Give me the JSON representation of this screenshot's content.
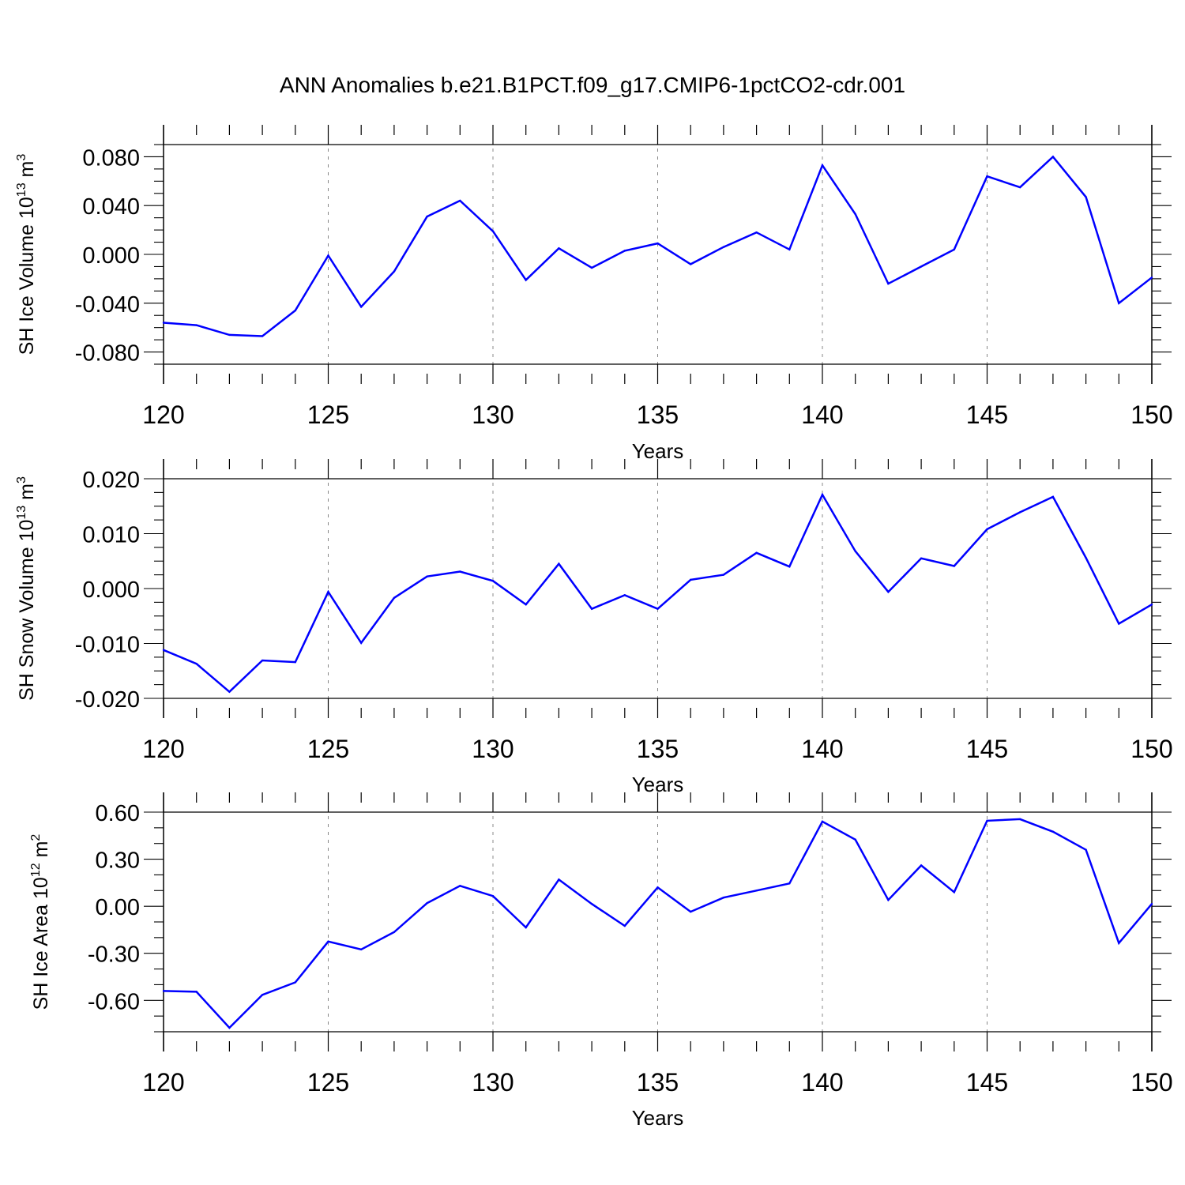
{
  "title": "ANN Anomalies b.e21.B1PCT.f09_g17.CMIP6-1pctCO2-cdr.001",
  "colors": {
    "line": "#0000ff",
    "axis": "#000000",
    "grid": "#888888"
  },
  "chart_data": [
    {
      "type": "line",
      "xlabel": "Years",
      "ylabel": "SH Ice Volume 10",
      "ylabel_exp": "13",
      "ylabel_unit": " m",
      "ylabel_unit_exp": "3",
      "xlim": [
        120,
        150
      ],
      "ylim": [
        -0.09,
        0.09
      ],
      "x_ticks": [
        120,
        125,
        130,
        135,
        140,
        145,
        150
      ],
      "x_tick_labels": [
        "120",
        "125",
        "130",
        "135",
        "140",
        "145",
        "150"
      ],
      "y_ticks": [
        -0.08,
        -0.04,
        0.0,
        0.04,
        0.08
      ],
      "y_tick_labels": [
        "-0.080",
        "-0.040",
        "0.000",
        "0.040",
        "0.080"
      ],
      "y_minor_step": 0.01,
      "x": [
        120,
        121,
        122,
        123,
        124,
        125,
        126,
        127,
        128,
        129,
        130,
        131,
        132,
        133,
        134,
        135,
        136,
        137,
        138,
        139,
        140,
        141,
        142,
        143,
        144,
        145,
        146,
        147,
        148,
        149,
        150
      ],
      "values": [
        -0.056,
        -0.058,
        -0.066,
        -0.067,
        -0.046,
        -0.001,
        -0.043,
        -0.014,
        0.031,
        0.044,
        0.019,
        -0.021,
        0.005,
        -0.011,
        0.003,
        0.009,
        -0.008,
        0.006,
        0.018,
        0.004,
        0.073,
        0.033,
        -0.024,
        -0.01,
        0.004,
        0.064,
        0.055,
        0.08,
        0.047,
        -0.04,
        -0.019
      ]
    },
    {
      "type": "line",
      "xlabel": "Years",
      "ylabel": "SH Snow Volume 10",
      "ylabel_exp": "13",
      "ylabel_unit": " m",
      "ylabel_unit_exp": "3",
      "xlim": [
        120,
        150
      ],
      "ylim": [
        -0.02,
        0.02
      ],
      "x_ticks": [
        120,
        125,
        130,
        135,
        140,
        145,
        150
      ],
      "x_tick_labels": [
        "120",
        "125",
        "130",
        "135",
        "140",
        "145",
        "150"
      ],
      "y_ticks": [
        -0.02,
        -0.01,
        0.0,
        0.01,
        0.02
      ],
      "y_tick_labels": [
        "-0.020",
        "-0.010",
        "0.000",
        "0.010",
        "0.020"
      ],
      "y_minor_step": 0.0025,
      "x": [
        120,
        121,
        122,
        123,
        124,
        125,
        126,
        127,
        128,
        129,
        130,
        131,
        132,
        133,
        134,
        135,
        136,
        137,
        138,
        139,
        140,
        141,
        142,
        143,
        144,
        145,
        146,
        147,
        148,
        149,
        150
      ],
      "values": [
        -0.0112,
        -0.0137,
        -0.0188,
        -0.0131,
        -0.0134,
        -0.0006,
        -0.0099,
        -0.0017,
        0.0022,
        0.0031,
        0.0014,
        -0.0029,
        0.0045,
        -0.0037,
        -0.0012,
        -0.0037,
        0.0016,
        0.0025,
        0.0065,
        0.004,
        0.0171,
        0.0068,
        -0.0006,
        0.0055,
        0.0041,
        0.0108,
        0.0139,
        0.0167,
        0.0056,
        -0.0064,
        -0.0029
      ]
    },
    {
      "type": "line",
      "xlabel": "Years",
      "ylabel": "SH Ice Area 10",
      "ylabel_exp": "12",
      "ylabel_unit": " m",
      "ylabel_unit_exp": "2",
      "xlim": [
        120,
        150
      ],
      "ylim": [
        -0.8,
        0.6
      ],
      "x_ticks": [
        120,
        125,
        130,
        135,
        140,
        145,
        150
      ],
      "x_tick_labels": [
        "120",
        "125",
        "130",
        "135",
        "140",
        "145",
        "150"
      ],
      "y_ticks": [
        -0.6,
        -0.3,
        0.0,
        0.3,
        0.6
      ],
      "y_tick_labels": [
        "-0.60",
        "-0.30",
        "0.00",
        "0.30",
        "0.60"
      ],
      "y_minor_step": 0.1,
      "x": [
        120,
        121,
        122,
        123,
        124,
        125,
        126,
        127,
        128,
        129,
        130,
        131,
        132,
        133,
        134,
        135,
        136,
        137,
        138,
        139,
        140,
        141,
        142,
        143,
        144,
        145,
        146,
        147,
        148,
        149,
        150
      ],
      "values": [
        -0.54,
        -0.545,
        -0.775,
        -0.565,
        -0.485,
        -0.225,
        -0.275,
        -0.165,
        0.02,
        0.13,
        0.065,
        -0.135,
        0.17,
        0.015,
        -0.125,
        0.12,
        -0.035,
        0.055,
        0.1,
        0.145,
        0.54,
        0.425,
        0.04,
        0.26,
        0.09,
        0.545,
        0.555,
        0.475,
        0.36,
        -0.235,
        0.015
      ]
    }
  ]
}
